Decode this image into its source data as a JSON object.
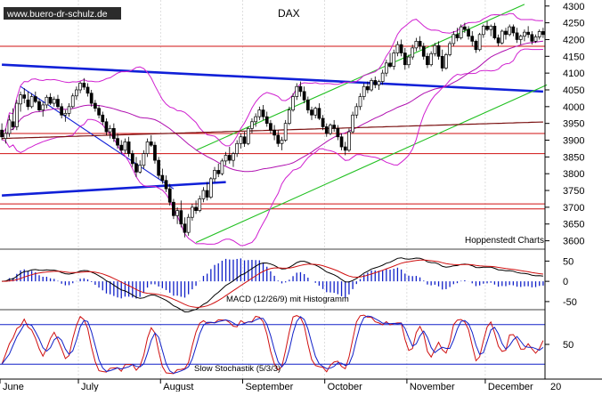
{
  "watermark": "www.buero-dr-schulz.de",
  "credit": "Hoppenstedt Charts",
  "chart_data": [
    {
      "type": "candlestick",
      "title": "DAX",
      "y_ticks": [
        3600,
        3650,
        3700,
        3750,
        3800,
        3850,
        3900,
        3950,
        4000,
        4050,
        4100,
        4150,
        4200,
        4250,
        4300
      ],
      "ylim": [
        3575,
        4310
      ],
      "x_months": [
        "June",
        "July",
        "August",
        "September",
        "October",
        "November",
        "December"
      ],
      "x_extra_tick": "20",
      "sessions": 146,
      "ohlc": [
        [
          3930,
          3950,
          3900,
          3910
        ],
        [
          3905,
          3935,
          3890,
          3920
        ],
        [
          3920,
          3975,
          3910,
          3960
        ],
        [
          3955,
          3995,
          3930,
          3940
        ],
        [
          3940,
          4020,
          3930,
          4010
        ],
        [
          4008,
          4045,
          3985,
          4035
        ],
        [
          4035,
          4055,
          4010,
          4025
        ],
        [
          4020,
          4045,
          3990,
          4000
        ],
        [
          4000,
          4040,
          3995,
          4030
        ],
        [
          4030,
          4045,
          4010,
          4015
        ],
        [
          4015,
          4025,
          3985,
          3990
        ],
        [
          3990,
          4015,
          3970,
          4005
        ],
        [
          4005,
          4035,
          3995,
          4028
        ],
        [
          4028,
          4040,
          4005,
          4010
        ],
        [
          4010,
          4030,
          4000,
          4022
        ],
        [
          4022,
          4035,
          3995,
          4000
        ],
        [
          4000,
          4010,
          3965,
          3975
        ],
        [
          3975,
          3990,
          3955,
          3980
        ],
        [
          3980,
          4010,
          3970,
          4000
        ],
        [
          4000,
          4040,
          3995,
          4032
        ],
        [
          4032,
          4060,
          4020,
          4050
        ],
        [
          4050,
          4075,
          4040,
          4070
        ],
        [
          4070,
          4085,
          4050,
          4058
        ],
        [
          4058,
          4070,
          4030,
          4040
        ],
        [
          4040,
          4050,
          4000,
          4010
        ],
        [
          4010,
          4020,
          3985,
          3995
        ],
        [
          3995,
          4005,
          3965,
          3975
        ],
        [
          3975,
          3985,
          3945,
          3955
        ],
        [
          3955,
          3965,
          3915,
          3925
        ],
        [
          3925,
          3945,
          3905,
          3935
        ],
        [
          3935,
          3950,
          3895,
          3905
        ],
        [
          3905,
          3920,
          3875,
          3885
        ],
        [
          3885,
          3900,
          3860,
          3870
        ],
        [
          3870,
          3905,
          3860,
          3895
        ],
        [
          3895,
          3910,
          3850,
          3860
        ],
        [
          3860,
          3870,
          3820,
          3830
        ],
        [
          3830,
          3850,
          3790,
          3805
        ],
        [
          3805,
          3840,
          3800,
          3825
        ],
        [
          3825,
          3870,
          3815,
          3860
        ],
        [
          3860,
          3905,
          3850,
          3895
        ],
        [
          3895,
          3915,
          3880,
          3885
        ],
        [
          3885,
          3895,
          3830,
          3840
        ],
        [
          3840,
          3850,
          3785,
          3795
        ],
        [
          3795,
          3815,
          3770,
          3780
        ],
        [
          3780,
          3795,
          3745,
          3755
        ],
        [
          3755,
          3770,
          3705,
          3715
        ],
        [
          3715,
          3725,
          3665,
          3675
        ],
        [
          3675,
          3700,
          3650,
          3690
        ],
        [
          3690,
          3720,
          3640,
          3650
        ],
        [
          3650,
          3670,
          3610,
          3625
        ],
        [
          3625,
          3680,
          3615,
          3670
        ],
        [
          3670,
          3710,
          3660,
          3700
        ],
        [
          3700,
          3720,
          3680,
          3690
        ],
        [
          3690,
          3735,
          3685,
          3725
        ],
        [
          3725,
          3760,
          3715,
          3750
        ],
        [
          3750,
          3775,
          3720,
          3730
        ],
        [
          3730,
          3790,
          3725,
          3785
        ],
        [
          3785,
          3820,
          3775,
          3810
        ],
        [
          3810,
          3830,
          3790,
          3800
        ],
        [
          3800,
          3845,
          3795,
          3838
        ],
        [
          3838,
          3865,
          3825,
          3855
        ],
        [
          3855,
          3880,
          3830,
          3840
        ],
        [
          3840,
          3865,
          3820,
          3860
        ],
        [
          3860,
          3900,
          3850,
          3890
        ],
        [
          3890,
          3920,
          3875,
          3910
        ],
        [
          3910,
          3925,
          3880,
          3890
        ],
        [
          3890,
          3940,
          3885,
          3935
        ],
        [
          3935,
          3965,
          3920,
          3955
        ],
        [
          3955,
          3980,
          3940,
          3970
        ],
        [
          3970,
          4000,
          3960,
          3990
        ],
        [
          3990,
          4005,
          3960,
          3970
        ],
        [
          3970,
          3985,
          3940,
          3950
        ],
        [
          3950,
          3960,
          3920,
          3930
        ],
        [
          3930,
          3945,
          3900,
          3915
        ],
        [
          3915,
          3930,
          3880,
          3890
        ],
        [
          3890,
          3910,
          3870,
          3900
        ],
        [
          3900,
          3960,
          3895,
          3950
        ],
        [
          3950,
          4000,
          3945,
          3990
        ],
        [
          3990,
          4040,
          3985,
          4030
        ],
        [
          4030,
          4070,
          4020,
          4060
        ],
        [
          4060,
          4075,
          4030,
          4045
        ],
        [
          4045,
          4060,
          4010,
          4020
        ],
        [
          4020,
          4030,
          3980,
          3990
        ],
        [
          3990,
          4000,
          3960,
          3975
        ],
        [
          3975,
          4000,
          3965,
          3995
        ],
        [
          3995,
          4010,
          3960,
          3965
        ],
        [
          3965,
          3975,
          3930,
          3940
        ],
        [
          3940,
          3950,
          3910,
          3920
        ],
        [
          3920,
          3950,
          3915,
          3945
        ],
        [
          3945,
          3960,
          3925,
          3935
        ],
        [
          3935,
          3945,
          3900,
          3910
        ],
        [
          3910,
          3920,
          3870,
          3880
        ],
        [
          3880,
          3895,
          3855,
          3870
        ],
        [
          3870,
          3935,
          3865,
          3925
        ],
        [
          3925,
          3985,
          3920,
          3975
        ],
        [
          3975,
          4010,
          3965,
          4000
        ],
        [
          4000,
          4040,
          3990,
          4030
        ],
        [
          4030,
          4070,
          4020,
          4060
        ],
        [
          4060,
          4075,
          4040,
          4050
        ],
        [
          4050,
          4085,
          4045,
          4078
        ],
        [
          4078,
          4090,
          4055,
          4065
        ],
        [
          4065,
          4080,
          4050,
          4075
        ],
        [
          4075,
          4110,
          4065,
          4100
        ],
        [
          4100,
          4140,
          4090,
          4130
        ],
        [
          4130,
          4160,
          4115,
          4120
        ],
        [
          4120,
          4170,
          4110,
          4160
        ],
        [
          4160,
          4195,
          4150,
          4185
        ],
        [
          4185,
          4200,
          4150,
          4160
        ],
        [
          4160,
          4175,
          4110,
          4125
        ],
        [
          4125,
          4155,
          4115,
          4148
        ],
        [
          4148,
          4185,
          4140,
          4175
        ],
        [
          4175,
          4205,
          4165,
          4195
        ],
        [
          4195,
          4210,
          4170,
          4180
        ],
        [
          4180,
          4190,
          4140,
          4150
        ],
        [
          4150,
          4160,
          4115,
          4125
        ],
        [
          4125,
          4165,
          4120,
          4158
        ],
        [
          4158,
          4190,
          4150,
          4182
        ],
        [
          4182,
          4195,
          4140,
          4150
        ],
        [
          4150,
          4170,
          4105,
          4115
        ],
        [
          4115,
          4160,
          4110,
          4155
        ],
        [
          4155,
          4195,
          4150,
          4188
        ],
        [
          4188,
          4225,
          4180,
          4215
        ],
        [
          4215,
          4235,
          4195,
          4205
        ],
        [
          4205,
          4245,
          4200,
          4238
        ],
        [
          4238,
          4250,
          4220,
          4230
        ],
        [
          4230,
          4240,
          4200,
          4210
        ],
        [
          4210,
          4225,
          4180,
          4195
        ],
        [
          4195,
          4200,
          4160,
          4170
        ],
        [
          4170,
          4220,
          4165,
          4215
        ],
        [
          4215,
          4245,
          4205,
          4240
        ],
        [
          4240,
          4255,
          4225,
          4230
        ],
        [
          4230,
          4245,
          4210,
          4240
        ],
        [
          4240,
          4250,
          4200,
          4205
        ],
        [
          4205,
          4215,
          4180,
          4190
        ],
        [
          4190,
          4230,
          4185,
          4225
        ],
        [
          4225,
          4235,
          4200,
          4215
        ],
        [
          4215,
          4245,
          4210,
          4238
        ],
        [
          4238,
          4245,
          4210,
          4220
        ],
        [
          4220,
          4235,
          4190,
          4200
        ],
        [
          4200,
          4215,
          4185,
          4210
        ],
        [
          4210,
          4230,
          4195,
          4222
        ],
        [
          4222,
          4240,
          4205,
          4215
        ],
        [
          4215,
          4225,
          4185,
          4195
        ],
        [
          4195,
          4215,
          4190,
          4208
        ],
        [
          4208,
          4230,
          4200,
          4224
        ],
        [
          4224,
          4235,
          4205,
          4215
        ]
      ],
      "horizontal_levels": [
        4180,
        3920,
        3860,
        3710,
        3695
      ],
      "trendlines": [
        {
          "kind": "resistance",
          "from": [
            0,
            4125
          ],
          "to": [
            145,
            4045
          ],
          "color": "#1020d8"
        },
        {
          "kind": "support",
          "from": [
            0,
            3735
          ],
          "to": [
            60,
            3775
          ],
          "color": "#1020d8"
        },
        {
          "kind": "short-downtrend",
          "from": [
            5,
            4060
          ],
          "to": [
            46,
            3755
          ],
          "color": "#1020d8"
        },
        {
          "kind": "channel-upper",
          "from": [
            52,
            3870
          ],
          "to": [
            140,
            4305
          ],
          "color": "#20c020"
        },
        {
          "kind": "channel-lower",
          "from": [
            52,
            3595
          ],
          "to": [
            146,
            4065
          ],
          "color": "#20c020"
        }
      ],
      "moving_averages": [
        "200-day",
        "38-day"
      ],
      "bollinger_bands": true
    },
    {
      "type": "bar",
      "label": "MACD (12/26/9) mit Histogramm",
      "y_ticks": [
        50,
        0,
        -50
      ],
      "ylim": [
        -70,
        75
      ]
    },
    {
      "type": "line",
      "label": "Slow Stochastik (5/3/3)",
      "y_ticks": [
        50
      ],
      "ylim": [
        0,
        100
      ],
      "levels": [
        80,
        20
      ]
    }
  ]
}
